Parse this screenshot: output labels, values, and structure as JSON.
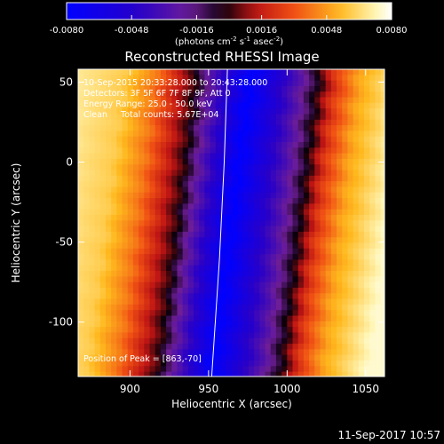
{
  "footer": {
    "timestamp": "11-Sep-2017 10:57"
  },
  "chart_data": {
    "type": "heatmap",
    "title": "Reconstructed RHESSI Image",
    "xlabel": "Heliocentric X (arcsec)",
    "ylabel": "Heliocentric Y (arcsec)",
    "xlim": [
      867,
      1062
    ],
    "ylim": [
      -134,
      58
    ],
    "xticks": [
      900,
      950,
      1000,
      1050
    ],
    "yticks": [
      50,
      0,
      -50,
      -100
    ],
    "colorbar": {
      "range": [
        -0.008,
        0.008
      ],
      "ticks": [
        "-0.0080",
        "-0.0048",
        "-0.0016",
        "0.0016",
        "0.0048",
        "0.0080"
      ],
      "unit_prefix": "(photons cm",
      "unit_sup1": "-2",
      "unit_mid": " s",
      "unit_sup2": "-1",
      "unit_mid2": " asec",
      "unit_sup3": "-2",
      "unit_suffix": ")",
      "colormap": "blue-purple-black-red-orange-yellow-white"
    },
    "annotations": {
      "time_range": "10-Sep-2015 20:33:28.000 to 20:43:28.000",
      "detectors": "Detectors: 3F 5F 6F 7F 8F 9F, Att 0",
      "energy": "Energy Range: 25.0 - 50.0 keV",
      "counts": "Clean     Total counts: 5.67E+04",
      "peak": "Position of Peak = [863,-70]"
    },
    "field_pattern": {
      "description": "negative trough running diagonally; bright positive bands on left and right edges",
      "trough_center_x_at_y": [
        [
          58,
          975
        ],
        [
          -134,
          950
        ]
      ],
      "levels_by_offset_arcsec": [
        [
          -120,
          0.0072
        ],
        [
          -80,
          0.006
        ],
        [
          -60,
          0.004
        ],
        [
          -45,
          0.0015
        ],
        [
          -35,
          0.0
        ],
        [
          -25,
          -0.0025
        ],
        [
          0,
          -0.008
        ],
        [
          30,
          -0.003
        ],
        [
          45,
          0.0
        ],
        [
          55,
          0.0025
        ],
        [
          70,
          0.005
        ],
        [
          100,
          0.0075
        ]
      ]
    },
    "limb_curve": {
      "x_at_y": [
        [
          58,
          962
        ],
        [
          0,
          960
        ],
        [
          -60,
          957
        ],
        [
          -134,
          952
        ]
      ]
    }
  }
}
